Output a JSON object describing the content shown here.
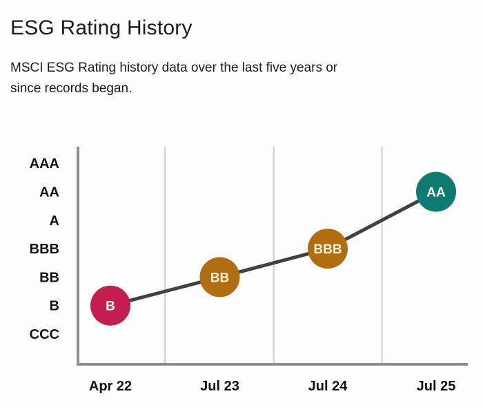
{
  "page": {
    "title": "ESG Rating History",
    "subtitle_line1": "MSCI ESG Rating history data over the last five years or",
    "subtitle_line2": "since records began."
  },
  "chart_data": {
    "type": "line",
    "title": "ESG Rating History",
    "categories": [
      "Apr 22",
      "Jul 23",
      "Jul 24",
      "Jul 25"
    ],
    "values": [
      "B",
      "BB",
      "BBB",
      "AA"
    ],
    "rating_scale_bottom_to_top": [
      "CCC",
      "B",
      "BB",
      "BBB",
      "A",
      "AA",
      "AAA"
    ],
    "y_axis_labels_top_to_bottom": [
      "AAA",
      "AA",
      "A",
      "BBB",
      "BB",
      "B",
      "CCC"
    ],
    "points": [
      {
        "category": "Apr 22",
        "rating": "B",
        "color": "#c41e4c",
        "label_color": "#ffffff"
      },
      {
        "category": "Jul 23",
        "rating": "BB",
        "color": "#b06e10",
        "label_color": "#f7f1d2"
      },
      {
        "category": "Jul 24",
        "rating": "BBB",
        "color": "#b06e10",
        "label_color": "#f7f1d2"
      },
      {
        "category": "Jul 25",
        "rating": "AA",
        "color": "#0e7b70",
        "label_color": "#ffffff"
      }
    ],
    "colors": {
      "line": "#414141",
      "axis": "#8f8f8f",
      "gridline": "#cdcdcd",
      "axis_label": "#121212"
    },
    "grid": "vertical-lines-between-categories",
    "legend": "none"
  }
}
